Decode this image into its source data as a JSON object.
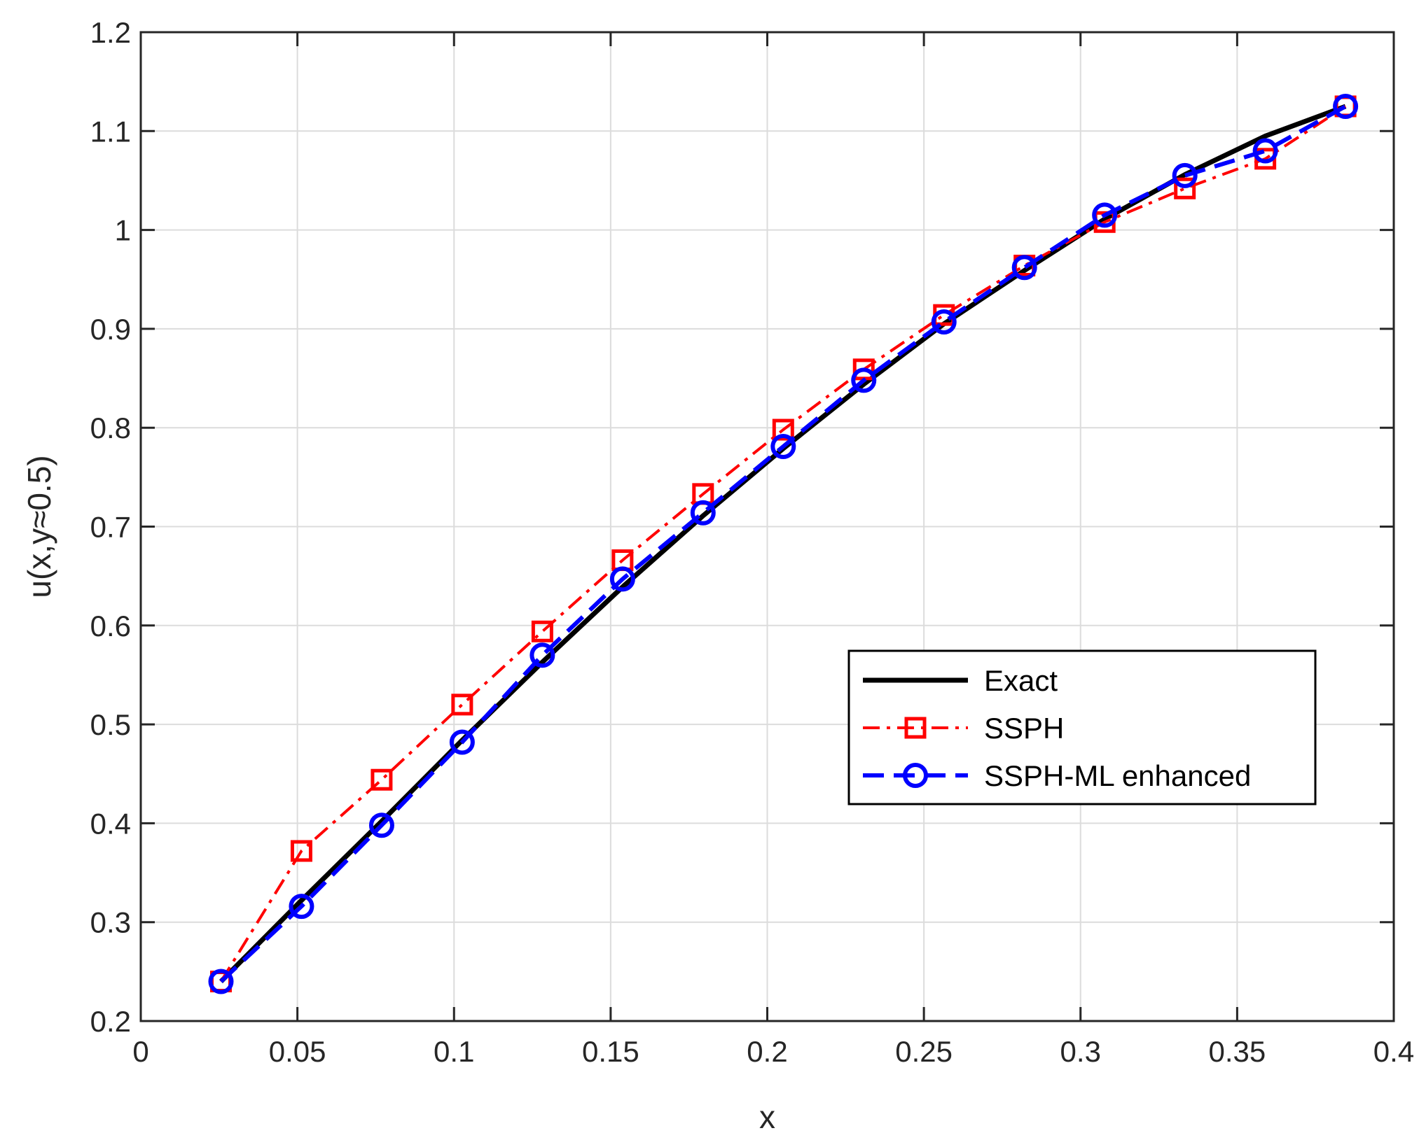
{
  "chart_data": {
    "type": "line",
    "title": "",
    "xlabel": "x",
    "ylabel": "u(x,y≈0.5)",
    "xlim": [
      0,
      0.4
    ],
    "ylim": [
      0.2,
      1.2
    ],
    "xticks": [
      0,
      0.05,
      0.1,
      0.15,
      0.2,
      0.25,
      0.3,
      0.35,
      0.4
    ],
    "xtick_labels": [
      "0",
      "0.05",
      "0.1",
      "0.15",
      "0.2",
      "0.25",
      "0.3",
      "0.35",
      "0.4"
    ],
    "yticks": [
      0.2,
      0.3,
      0.4,
      0.5,
      0.6,
      0.7,
      0.8,
      0.9,
      1,
      1.1,
      1.2
    ],
    "ytick_labels": [
      "0.2",
      "0.3",
      "0.4",
      "0.5",
      "0.6",
      "0.7",
      "0.8",
      "0.9",
      "1",
      "1.1",
      "1.2"
    ],
    "grid": true,
    "legend_position": "lower-right",
    "x": [
      0.0256,
      0.0513,
      0.0769,
      0.1026,
      0.1282,
      0.1538,
      0.1795,
      0.2051,
      0.2308,
      0.2564,
      0.2821,
      0.3077,
      0.3333,
      0.359,
      0.3846
    ],
    "series": [
      {
        "name": "Exact",
        "color": "#000000",
        "line_style": "solid",
        "marker": "none",
        "values": [
          0.24,
          0.322,
          0.402,
          0.484,
          0.563,
          0.639,
          0.711,
          0.779,
          0.844,
          0.905,
          0.959,
          1.011,
          1.056,
          1.095,
          1.125
        ]
      },
      {
        "name": "SSPH",
        "color": "#ff0000",
        "line_style": "dash-dot",
        "marker": "square",
        "values": [
          0.24,
          0.372,
          0.444,
          0.52,
          0.594,
          0.666,
          0.733,
          0.798,
          0.859,
          0.914,
          0.964,
          1.008,
          1.042,
          1.072,
          1.125
        ]
      },
      {
        "name": "SSPH-ML enhanced",
        "color": "#0000ff",
        "line_style": "dashed",
        "marker": "circle",
        "values": [
          0.24,
          0.316,
          0.398,
          0.482,
          0.57,
          0.647,
          0.714,
          0.781,
          0.848,
          0.907,
          0.962,
          1.015,
          1.055,
          1.08,
          1.125
        ]
      }
    ]
  }
}
